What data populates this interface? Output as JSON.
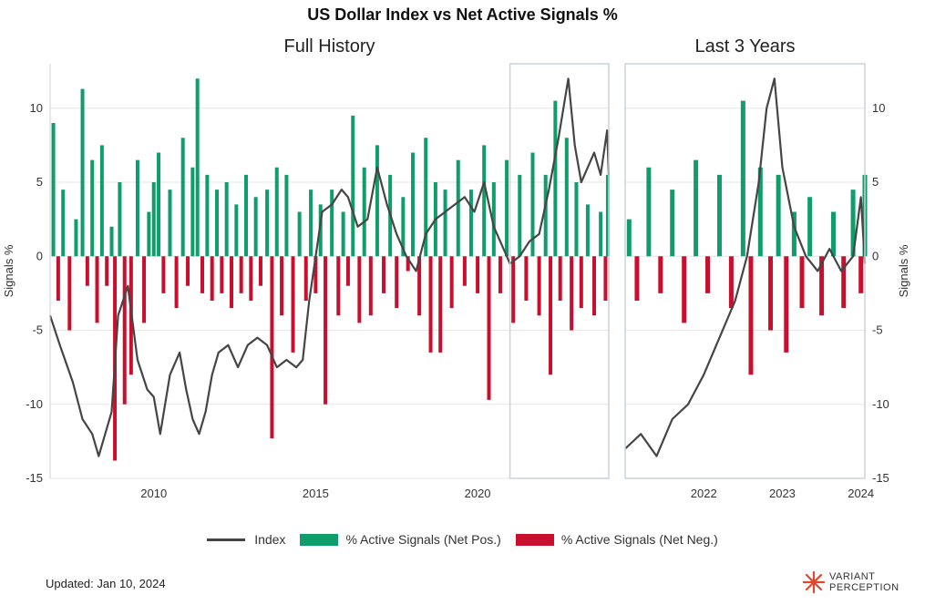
{
  "chart_data": {
    "type": "bar+line",
    "title": "US Dollar Index vs Net Active Signals %",
    "panels": [
      {
        "name": "full",
        "subtitle": "Full History",
        "x_range": [
          2006.8,
          2024.05
        ],
        "x_ticks": [
          "2010",
          "2015",
          "2020"
        ],
        "x_tick_values": [
          2010,
          2015,
          2020
        ],
        "highlight_range": [
          2021.0,
          2024.05
        ]
      },
      {
        "name": "recent",
        "subtitle": "Last 3 Years",
        "x_range": [
          2021.0,
          2024.05
        ],
        "x_ticks": [
          "2022",
          "2023",
          "2024"
        ],
        "x_tick_values": [
          2022,
          2023,
          2024
        ]
      }
    ],
    "y_range": [
      -15,
      13
    ],
    "y_ticks": [
      "10",
      "5",
      "0",
      "-5",
      "-10",
      "-15"
    ],
    "y_tick_values": [
      10,
      5,
      0,
      -5,
      -10,
      -15
    ],
    "ylabel_left": "Signals %",
    "ylabel_right": "Signals %",
    "grid": true,
    "legend_position": "bottom",
    "colors": {
      "index": "#454545",
      "positive": "#0f9d6b",
      "negative": "#c8102e",
      "frame": "#c9d3d9"
    },
    "series": [
      {
        "name": "Index",
        "kind": "line",
        "points": [
          [
            2006.8,
            -4.0
          ],
          [
            2007.1,
            -6.0
          ],
          [
            2007.5,
            -8.5
          ],
          [
            2007.8,
            -11.0
          ],
          [
            2008.1,
            -12.0
          ],
          [
            2008.3,
            -13.5
          ],
          [
            2008.5,
            -12.0
          ],
          [
            2008.7,
            -10.5
          ],
          [
            2008.9,
            -4.0
          ],
          [
            2009.2,
            -2.0
          ],
          [
            2009.5,
            -7.0
          ],
          [
            2009.8,
            -9.0
          ],
          [
            2010.0,
            -9.5
          ],
          [
            2010.2,
            -12.0
          ],
          [
            2010.5,
            -8.0
          ],
          [
            2010.8,
            -6.5
          ],
          [
            2011.0,
            -9.0
          ],
          [
            2011.2,
            -11.0
          ],
          [
            2011.4,
            -12.0
          ],
          [
            2011.6,
            -10.5
          ],
          [
            2011.8,
            -8.0
          ],
          [
            2012.0,
            -6.5
          ],
          [
            2012.3,
            -6.0
          ],
          [
            2012.6,
            -7.5
          ],
          [
            2012.9,
            -6.0
          ],
          [
            2013.2,
            -5.5
          ],
          [
            2013.5,
            -6.0
          ],
          [
            2013.8,
            -7.5
          ],
          [
            2014.1,
            -7.0
          ],
          [
            2014.4,
            -7.5
          ],
          [
            2014.6,
            -7.0
          ],
          [
            2014.8,
            -3.0
          ],
          [
            2015.0,
            0.0
          ],
          [
            2015.2,
            3.0
          ],
          [
            2015.5,
            3.5
          ],
          [
            2015.8,
            4.5
          ],
          [
            2016.0,
            4.0
          ],
          [
            2016.3,
            2.0
          ],
          [
            2016.6,
            2.5
          ],
          [
            2016.9,
            6.0
          ],
          [
            2017.2,
            3.5
          ],
          [
            2017.5,
            1.5
          ],
          [
            2017.8,
            0.0
          ],
          [
            2018.1,
            -1.0
          ],
          [
            2018.4,
            1.5
          ],
          [
            2018.7,
            2.5
          ],
          [
            2019.0,
            3.0
          ],
          [
            2019.3,
            3.5
          ],
          [
            2019.6,
            4.0
          ],
          [
            2019.9,
            3.0
          ],
          [
            2020.2,
            5.0
          ],
          [
            2020.5,
            2.0
          ],
          [
            2020.8,
            0.5
          ],
          [
            2021.0,
            -0.5
          ],
          [
            2021.3,
            0.0
          ],
          [
            2021.6,
            1.0
          ],
          [
            2021.9,
            1.5
          ],
          [
            2022.2,
            4.5
          ],
          [
            2022.5,
            8.0
          ],
          [
            2022.8,
            12.0
          ],
          [
            2023.0,
            7.5
          ],
          [
            2023.2,
            5.0
          ],
          [
            2023.4,
            6.0
          ],
          [
            2023.6,
            7.0
          ],
          [
            2023.8,
            5.5
          ],
          [
            2024.0,
            8.5
          ],
          [
            2024.05,
            5.5
          ]
        ],
        "points_recent": [
          [
            2021.0,
            -13.0
          ],
          [
            2021.2,
            -12.0
          ],
          [
            2021.4,
            -13.5
          ],
          [
            2021.6,
            -11.0
          ],
          [
            2021.8,
            -10.0
          ],
          [
            2022.0,
            -8.0
          ],
          [
            2022.2,
            -5.5
          ],
          [
            2022.4,
            -3.0
          ],
          [
            2022.55,
            0.0
          ],
          [
            2022.7,
            5.0
          ],
          [
            2022.8,
            10.0
          ],
          [
            2022.9,
            12.0
          ],
          [
            2023.0,
            6.0
          ],
          [
            2023.15,
            2.0
          ],
          [
            2023.3,
            0.0
          ],
          [
            2023.45,
            -1.0
          ],
          [
            2023.6,
            0.5
          ],
          [
            2023.75,
            -1.0
          ],
          [
            2023.9,
            0.0
          ],
          [
            2024.0,
            4.0
          ],
          [
            2024.05,
            -0.5
          ]
        ]
      },
      {
        "name": "% Active Signals (Net Pos.)",
        "kind": "bar",
        "sign": "positive"
      },
      {
        "name": "% Active Signals (Net Neg.)",
        "kind": "bar",
        "sign": "negative"
      }
    ],
    "bars_full": [
      [
        2006.9,
        9.0
      ],
      [
        2007.05,
        -3.0
      ],
      [
        2007.2,
        4.5
      ],
      [
        2007.4,
        -5.0
      ],
      [
        2007.6,
        2.5
      ],
      [
        2007.8,
        11.3
      ],
      [
        2007.95,
        -2.0
      ],
      [
        2008.1,
        6.5
      ],
      [
        2008.25,
        -4.5
      ],
      [
        2008.4,
        7.5
      ],
      [
        2008.55,
        -2.0
      ],
      [
        2008.7,
        2.0
      ],
      [
        2008.8,
        -13.8
      ],
      [
        2008.95,
        5.0
      ],
      [
        2009.1,
        -10.0
      ],
      [
        2009.3,
        -8.0
      ],
      [
        2009.5,
        6.5
      ],
      [
        2009.7,
        -4.5
      ],
      [
        2009.85,
        3.0
      ],
      [
        2010.0,
        5.0
      ],
      [
        2010.15,
        7.0
      ],
      [
        2010.3,
        -2.5
      ],
      [
        2010.5,
        4.5
      ],
      [
        2010.7,
        -3.5
      ],
      [
        2010.9,
        8.0
      ],
      [
        2011.05,
        -2.0
      ],
      [
        2011.2,
        6.0
      ],
      [
        2011.35,
        12.0
      ],
      [
        2011.5,
        -2.5
      ],
      [
        2011.65,
        5.5
      ],
      [
        2011.8,
        -3.0
      ],
      [
        2011.95,
        4.5
      ],
      [
        2012.1,
        -2.5
      ],
      [
        2012.25,
        5.0
      ],
      [
        2012.4,
        -3.5
      ],
      [
        2012.55,
        3.5
      ],
      [
        2012.7,
        -2.5
      ],
      [
        2012.85,
        5.5
      ],
      [
        2013.0,
        -3.0
      ],
      [
        2013.15,
        4.0
      ],
      [
        2013.3,
        -2.0
      ],
      [
        2013.5,
        4.5
      ],
      [
        2013.65,
        -12.3
      ],
      [
        2013.8,
        6.0
      ],
      [
        2013.95,
        -4.0
      ],
      [
        2014.1,
        5.5
      ],
      [
        2014.3,
        -6.5
      ],
      [
        2014.5,
        3.0
      ],
      [
        2014.7,
        -3.0
      ],
      [
        2014.85,
        4.5
      ],
      [
        2015.0,
        -2.5
      ],
      [
        2015.15,
        3.5
      ],
      [
        2015.3,
        -10.0
      ],
      [
        2015.5,
        4.5
      ],
      [
        2015.7,
        -4.0
      ],
      [
        2015.85,
        3.0
      ],
      [
        2016.0,
        -2.0
      ],
      [
        2016.15,
        9.5
      ],
      [
        2016.35,
        -4.5
      ],
      [
        2016.5,
        6.0
      ],
      [
        2016.7,
        -4.0
      ],
      [
        2016.9,
        7.5
      ],
      [
        2017.1,
        -2.5
      ],
      [
        2017.3,
        5.5
      ],
      [
        2017.5,
        -3.5
      ],
      [
        2017.7,
        4.0
      ],
      [
        2017.85,
        -1.0
      ],
      [
        2018.0,
        7.0
      ],
      [
        2018.2,
        -4.0
      ],
      [
        2018.4,
        8.0
      ],
      [
        2018.55,
        -6.5
      ],
      [
        2018.7,
        5.0
      ],
      [
        2018.85,
        -6.5
      ],
      [
        2019.0,
        4.5
      ],
      [
        2019.2,
        -3.5
      ],
      [
        2019.4,
        6.5
      ],
      [
        2019.6,
        -2.0
      ],
      [
        2019.8,
        4.5
      ],
      [
        2020.0,
        -2.5
      ],
      [
        2020.2,
        7.5
      ],
      [
        2020.35,
        -9.7
      ],
      [
        2020.5,
        5.0
      ],
      [
        2020.7,
        -2.5
      ],
      [
        2020.9,
        6.5
      ],
      [
        2021.1,
        -4.5
      ],
      [
        2021.3,
        5.5
      ],
      [
        2021.5,
        -3.0
      ],
      [
        2021.7,
        7.0
      ],
      [
        2021.9,
        -4.0
      ],
      [
        2022.1,
        5.5
      ],
      [
        2022.25,
        -8.0
      ],
      [
        2022.4,
        10.5
      ],
      [
        2022.55,
        -3.0
      ],
      [
        2022.75,
        8.0
      ],
      [
        2022.9,
        -5.0
      ],
      [
        2023.05,
        5.0
      ],
      [
        2023.2,
        -3.5
      ],
      [
        2023.4,
        3.5
      ],
      [
        2023.6,
        -4.0
      ],
      [
        2023.8,
        3.0
      ],
      [
        2023.95,
        -3.0
      ],
      [
        2024.02,
        5.5
      ]
    ],
    "bars_recent": [
      [
        2021.05,
        2.5
      ],
      [
        2021.15,
        -3.0
      ],
      [
        2021.3,
        6.0
      ],
      [
        2021.45,
        -2.5
      ],
      [
        2021.6,
        4.5
      ],
      [
        2021.75,
        -4.5
      ],
      [
        2021.9,
        6.5
      ],
      [
        2022.05,
        -2.5
      ],
      [
        2022.2,
        5.5
      ],
      [
        2022.35,
        -3.5
      ],
      [
        2022.5,
        10.5
      ],
      [
        2022.6,
        -8.0
      ],
      [
        2022.72,
        6.0
      ],
      [
        2022.85,
        -5.0
      ],
      [
        2022.95,
        5.5
      ],
      [
        2023.05,
        -6.5
      ],
      [
        2023.15,
        3.0
      ],
      [
        2023.25,
        -3.5
      ],
      [
        2023.35,
        4.0
      ],
      [
        2023.5,
        -4.0
      ],
      [
        2023.65,
        3.0
      ],
      [
        2023.78,
        -3.5
      ],
      [
        2023.9,
        4.5
      ],
      [
        2024.0,
        -2.5
      ],
      [
        2024.05,
        5.5
      ]
    ]
  },
  "legend": {
    "index_label": "Index",
    "pos_label": "% Active Signals (Net Pos.)",
    "neg_label": "% Active Signals (Net Neg.)"
  },
  "footer": {
    "updated": "Updated: Jan 10, 2024",
    "logo_line1": "VARIANT",
    "logo_line2": "PERCEPTION",
    "logo_icon": "sunburst-icon"
  }
}
